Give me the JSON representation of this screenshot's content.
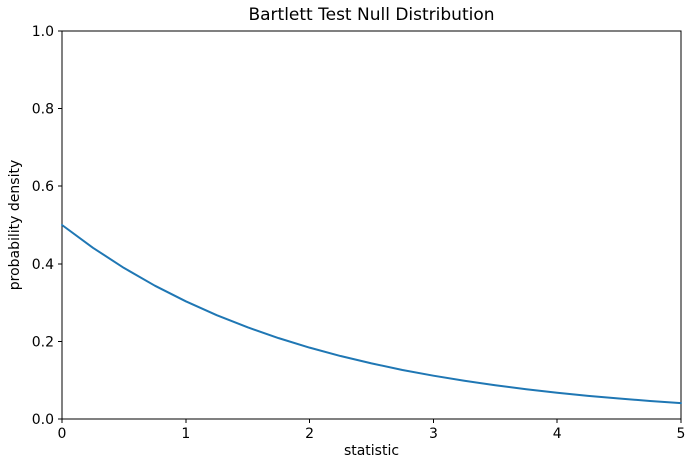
{
  "chart_data": {
    "type": "line",
    "title": "Bartlett Test Null Distribution",
    "xlabel": "statistic",
    "ylabel": "probability density",
    "xlim": [
      0,
      5
    ],
    "ylim": [
      0.0,
      1.0
    ],
    "grid": false,
    "legend": false,
    "xticks": [
      {
        "value": 0,
        "label": "0"
      },
      {
        "value": 1,
        "label": "1"
      },
      {
        "value": 2,
        "label": "2"
      },
      {
        "value": 3,
        "label": "3"
      },
      {
        "value": 4,
        "label": "4"
      },
      {
        "value": 5,
        "label": "5"
      }
    ],
    "yticks": [
      {
        "value": 0.0,
        "label": "0.0"
      },
      {
        "value": 0.2,
        "label": "0.2"
      },
      {
        "value": 0.4,
        "label": "0.4"
      },
      {
        "value": 0.6,
        "label": "0.6"
      },
      {
        "value": 0.8,
        "label": "0.8"
      },
      {
        "value": 1.0,
        "label": "1.0"
      }
    ],
    "series": [
      {
        "color": "#1f77b4",
        "x": [
          0,
          0.25,
          0.5,
          0.75,
          1.0,
          1.25,
          1.5,
          1.75,
          2.0,
          2.25,
          2.5,
          2.75,
          3.0,
          3.25,
          3.5,
          3.75,
          4.0,
          4.25,
          4.5,
          4.75,
          5.0
        ],
        "y": [
          0.5,
          0.4413,
          0.3894,
          0.3436,
          0.3033,
          0.2676,
          0.2362,
          0.2084,
          0.1839,
          0.1623,
          0.1433,
          0.1264,
          0.1116,
          0.0985,
          0.0869,
          0.0767,
          0.0677,
          0.0597,
          0.0527,
          0.0465,
          0.041
        ]
      }
    ]
  }
}
